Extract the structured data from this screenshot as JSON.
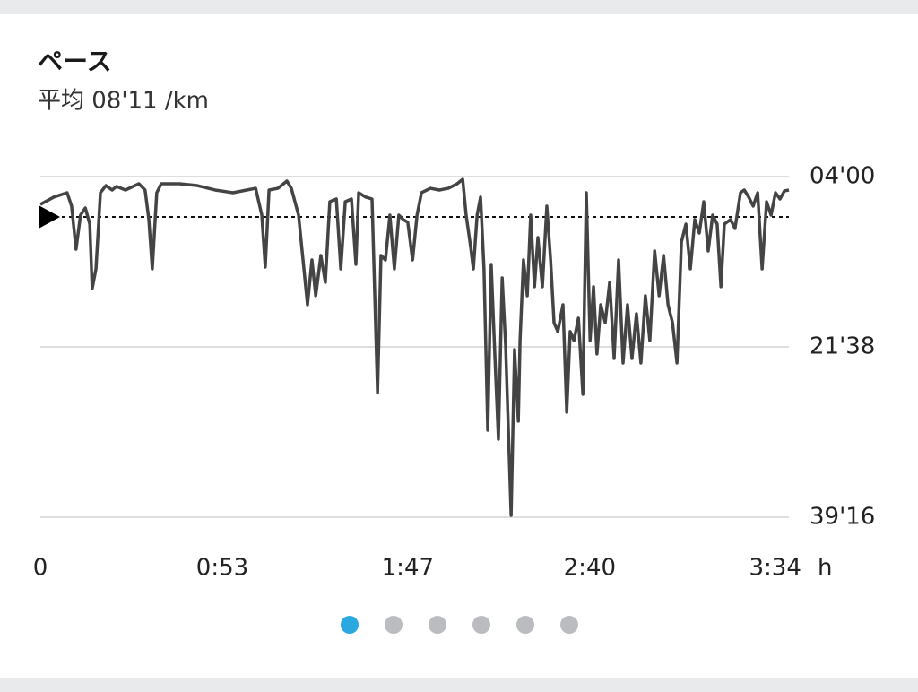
{
  "chart_data": {
    "type": "line",
    "title": "ペース",
    "subtitle": "平均 08'11 /km",
    "x_unit": "h",
    "color": "#444444",
    "y_inverted": true,
    "grid": true,
    "average_line": 8.18,
    "xlim": [
      0,
      218
    ],
    "ylim": [
      4,
      39.27
    ],
    "xticks": [
      0,
      {
        "value": 53,
        "label": "0:53"
      },
      {
        "value": 107,
        "label": "1:47"
      },
      {
        "value": 160,
        "label": "2:40"
      },
      {
        "value": 214,
        "label": "3:34"
      }
    ],
    "yticks": [
      {
        "value": 4,
        "label": "04'00"
      },
      {
        "value": 21.63,
        "label": "21'38"
      },
      {
        "value": 39.27,
        "label": "39'16"
      }
    ],
    "x": [
      0,
      3.9,
      7.8,
      9.1,
      10.4,
      11.7,
      13.1,
      14.4,
      15.1,
      16.2,
      17.5,
      19.1,
      20.9,
      22.2,
      24.8,
      28.7,
      30.5,
      31.6,
      32.6,
      33.9,
      35.2,
      40.5,
      45.7,
      50.9,
      56.1,
      60.1,
      62.7,
      64.5,
      65.5,
      66.6,
      69.2,
      71.8,
      73.1,
      75.2,
      76.5,
      77.8,
      79.1,
      80.2,
      81.7,
      83.0,
      84.3,
      86.2,
      87.5,
      88.8,
      90.6,
      91.9,
      92.7,
      94.8,
      96.6,
      98.2,
      99.2,
      100.5,
      101.8,
      103.1,
      104.4,
      105.7,
      107.0,
      108.4,
      109.7,
      111.0,
      113.6,
      116.2,
      118.8,
      121.4,
      123.0,
      124.0,
      125.3,
      126.1,
      127.2,
      128.2,
      129.2,
      130.3,
      131.3,
      132.4,
      133.4,
      134.5,
      135.5,
      137.1,
      138.1,
      139.2,
      139.7,
      140.7,
      141.8,
      142.8,
      143.9,
      144.9,
      146.2,
      147.5,
      148.6,
      149.6,
      150.7,
      152.2,
      153.3,
      154.3,
      155.4,
      156.7,
      158.0,
      159.0,
      160.1,
      161.1,
      162.1,
      163.2,
      164.5,
      165.8,
      167.1,
      168.4,
      169.7,
      171.0,
      172.3,
      173.6,
      174.9,
      176.2,
      177.5,
      178.9,
      180.2,
      181.5,
      182.8,
      184.1,
      185.4,
      186.7,
      188.0,
      189.3,
      190.6,
      191.9,
      193.2,
      194.5,
      195.8,
      197.1,
      198.2,
      199.2,
      201.0,
      202.3,
      203.9,
      205.0,
      206.3,
      207.6,
      208.9,
      210.2,
      211.5,
      212.8,
      214.1,
      215.4,
      216.7,
      218.0
    ],
    "series": [
      {
        "name": "ペース",
        "color": "#444444",
        "values": [
          6.88,
          6.13,
          5.67,
          7.06,
          11.52,
          7.99,
          7.25,
          8.92,
          15.6,
          13.56,
          5.67,
          4.93,
          5.39,
          5.02,
          5.39,
          4.74,
          5.39,
          8.45,
          13.56,
          5.67,
          4.74,
          4.74,
          4.93,
          5.39,
          5.67,
          5.39,
          5.21,
          7.99,
          13.37,
          5.39,
          5.21,
          4.46,
          5.21,
          7.99,
          12.63,
          17.27,
          12.63,
          16.34,
          12.17,
          14.95,
          6.6,
          6.32,
          13.56,
          6.6,
          6.32,
          13.09,
          5.67,
          6.13,
          6.32,
          26.36,
          12.17,
          12.63,
          7.99,
          13.56,
          7.99,
          8.45,
          8.73,
          12.63,
          7.99,
          5.67,
          5.21,
          5.39,
          5.21,
          4.74,
          4.28,
          7.99,
          11.24,
          13.56,
          7.99,
          6.13,
          13.56,
          30.26,
          13.09,
          22.84,
          31.19,
          14.49,
          21.45,
          39.08,
          21.91,
          29.33,
          20.98,
          12.63,
          16.34,
          7.99,
          15.41,
          10.31,
          15.41,
          7.06,
          12.63,
          19.13,
          20.05,
          17.27,
          28.41,
          20.05,
          20.98,
          18.66,
          26.55,
          5.67,
          20.98,
          15.41,
          22.37,
          17.27,
          19.13,
          14.95,
          22.84,
          12.63,
          23.3,
          17.27,
          22.84,
          18.2,
          23.3,
          16.34,
          20.98,
          11.7,
          16.34,
          12.17,
          17.27,
          19.13,
          23.3,
          10.77,
          8.92,
          13.56,
          8.45,
          9.85,
          6.6,
          11.7,
          7.99,
          8.92,
          15.41,
          8.92,
          8.45,
          9.38,
          5.67,
          5.39,
          6.13,
          7.06,
          5.67,
          13.56,
          6.6,
          7.99,
          5.67,
          6.32,
          5.48,
          5.39
        ]
      }
    ]
  }
}
